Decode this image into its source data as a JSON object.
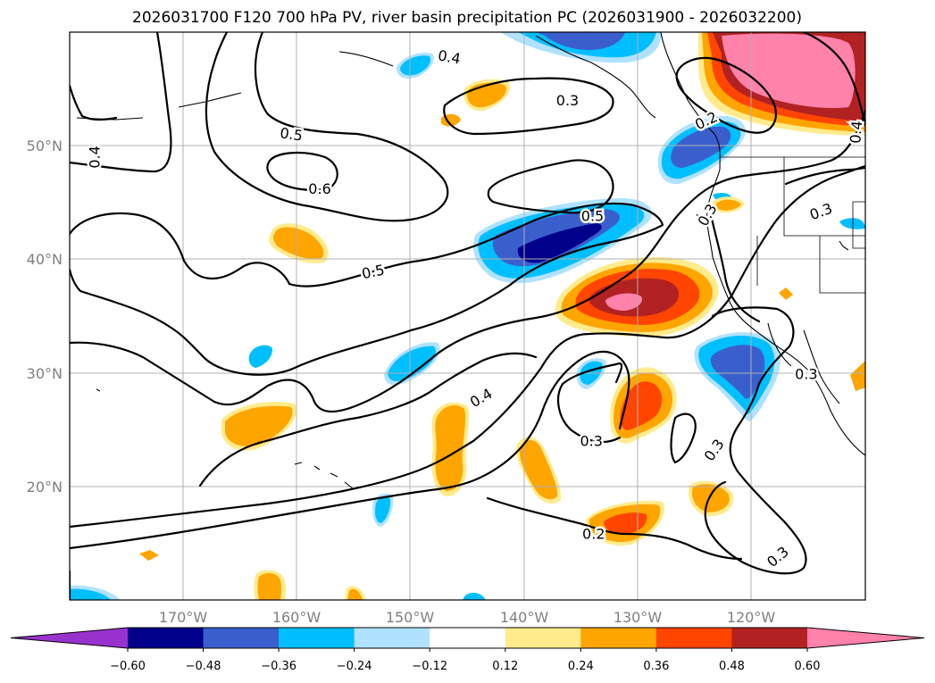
{
  "chart_data": {
    "type": "contour-map",
    "title": "2026031700 F120 700 hPa PV, river basin precipitation PC (2026031900 - 2026032200)",
    "x_ticks": [
      "170°W",
      "160°W",
      "150°W",
      "140°W",
      "130°W",
      "120°W"
    ],
    "x_tick_values": [
      -170,
      -160,
      -150,
      -140,
      -130,
      -120
    ],
    "y_ticks": [
      "20°N",
      "30°N",
      "40°N",
      "50°N"
    ],
    "y_tick_values": [
      20,
      30,
      40,
      50
    ],
    "lon_range": [
      -180,
      -110
    ],
    "lat_range": [
      10,
      60
    ],
    "colorbar": {
      "levels": [
        -0.6,
        -0.48,
        -0.36,
        -0.24,
        -0.12,
        0.12,
        0.24,
        0.36,
        0.48,
        0.6
      ],
      "tick_labels": [
        "−0.60",
        "−0.48",
        "−0.36",
        "−0.24",
        "−0.12",
        "0.12",
        "0.24",
        "0.36",
        "0.48",
        "0.60"
      ],
      "colors": [
        "#9932cc",
        "#00008b",
        "#3a5fcd",
        "#00bfff",
        "#b0e2ff",
        "#ffffff",
        "#ffeb8b",
        "#ffa500",
        "#ff4500",
        "#b22222",
        "#ff82ab"
      ],
      "extend": "both"
    },
    "contour_labels": [
      {
        "text": "0.4",
        "lon": -177.8,
        "lat": 49.0,
        "rotate": -90
      },
      {
        "text": "0.4",
        "lon": -146.6,
        "lat": 57.8,
        "rotate": 10
      },
      {
        "text": "0.3",
        "lon": -136.2,
        "lat": 54.0,
        "rotate": 0
      },
      {
        "text": "0.5",
        "lon": -160.5,
        "lat": 51.0,
        "rotate": 8
      },
      {
        "text": "0.6",
        "lon": -158.0,
        "lat": 46.2,
        "rotate": 0
      },
      {
        "text": "0.5",
        "lon": -134.0,
        "lat": 43.8,
        "rotate": 0
      },
      {
        "text": "0.5",
        "lon": -153.3,
        "lat": 38.9,
        "rotate": -12
      },
      {
        "text": "0.2",
        "lon": -124.0,
        "lat": 52.2,
        "rotate": -25
      },
      {
        "text": "0.3",
        "lon": -123.9,
        "lat": 43.9,
        "rotate": -60
      },
      {
        "text": "0.3",
        "lon": -113.9,
        "lat": 44.2,
        "rotate": -20
      },
      {
        "text": "0.4",
        "lon": -110.8,
        "lat": 51.2,
        "rotate": -85
      },
      {
        "text": "0.4",
        "lon": -143.8,
        "lat": 27.8,
        "rotate": -30
      },
      {
        "text": "0.3",
        "lon": -134.1,
        "lat": 24.0,
        "rotate": 0
      },
      {
        "text": "0.3",
        "lon": -115.2,
        "lat": 29.9,
        "rotate": 0
      },
      {
        "text": "0.3",
        "lon": -123.3,
        "lat": 23.2,
        "rotate": -55
      },
      {
        "text": "0.2",
        "lon": -133.9,
        "lat": 15.8,
        "rotate": 0
      },
      {
        "text": "0.3",
        "lon": -117.7,
        "lat": 13.8,
        "rotate": -40
      }
    ]
  }
}
